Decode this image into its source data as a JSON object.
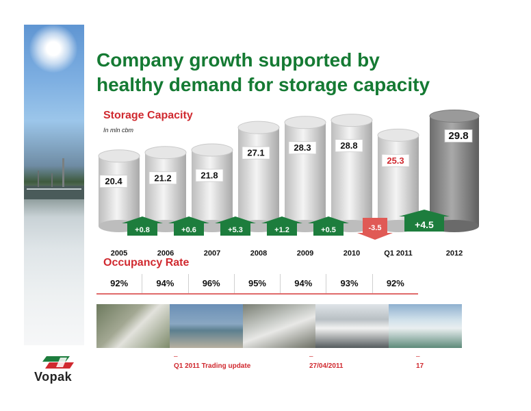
{
  "slide": {
    "title_line1": "Company growth supported by",
    "title_line2": "healthy demand for storage capacity"
  },
  "chart_data": {
    "type": "bar",
    "title": "Storage Capacity",
    "note": "In mln cbm",
    "categories": [
      "2005",
      "2006",
      "2007",
      "2008",
      "2009",
      "2010",
      "Q1 2011",
      "2012"
    ],
    "values": [
      20.4,
      21.2,
      21.8,
      27.1,
      28.3,
      28.8,
      25.3,
      29.8
    ],
    "value_labels": [
      "20.4",
      "21.2",
      "21.8",
      "27.1",
      "28.3",
      "28.8",
      "25.3",
      "29.8"
    ],
    "changes": [
      "+0.8",
      "+0.6",
      "+5.3",
      "+1.2",
      "+0.5",
      "-3.5",
      "+4.5"
    ],
    "change_directions": [
      "up",
      "up",
      "up",
      "up",
      "up",
      "down",
      "up"
    ],
    "colors": {
      "cylinder": "#d9d9d9",
      "cylinder_last": "#8a8a8a",
      "up_arrow": "#1d7d3d",
      "down_arrow": "#e05a55",
      "highlight_label": "#d0292f"
    }
  },
  "occupancy": {
    "title": "Occupancy Rate",
    "values": [
      "92%",
      "94%",
      "96%",
      "95%",
      "94%",
      "93%",
      "92%"
    ]
  },
  "footer": {
    "presentation": "Q1 2011 Trading update",
    "date": "27/04/2011",
    "page": "17"
  },
  "logo": {
    "name": "Vopak"
  }
}
